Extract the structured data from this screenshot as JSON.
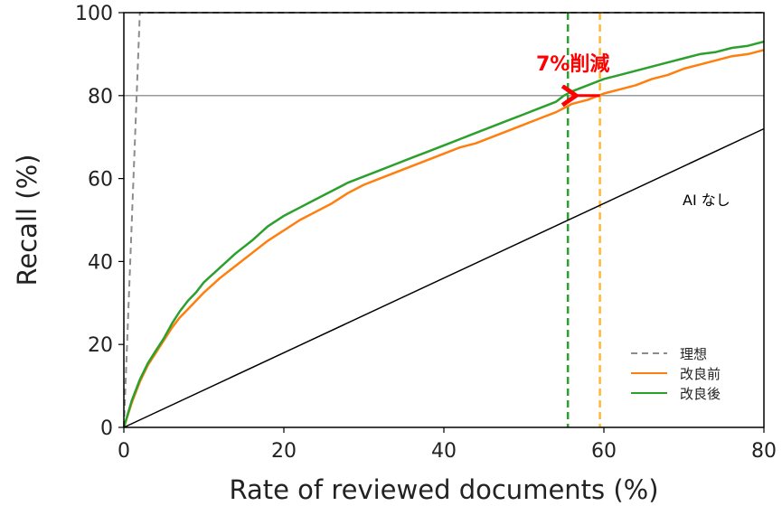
{
  "chart_data": {
    "type": "line",
    "xlabel": "Rate of reviewed documents (%)",
    "ylabel": "Recall (%)",
    "xlim": [
      0,
      80
    ],
    "ylim": [
      0,
      100
    ],
    "xticks": [
      0,
      20,
      40,
      60,
      80
    ],
    "yticks": [
      0,
      20,
      40,
      60,
      80,
      100
    ],
    "legend_position": "bottom-right",
    "series": [
      {
        "name": "理想",
        "color": "#8c8c8c",
        "style": "dashed",
        "x": [
          0,
          2,
          80
        ],
        "y": [
          0,
          100,
          100
        ]
      },
      {
        "name": "改良前",
        "color": "#ff7f0e",
        "style": "solid",
        "x": [
          0,
          1,
          2,
          3,
          4,
          5,
          6,
          7,
          8,
          9,
          10,
          12,
          14,
          16,
          18,
          20,
          22,
          24,
          26,
          28,
          30,
          32,
          34,
          36,
          38,
          40,
          42,
          44,
          46,
          48,
          50,
          52,
          54,
          55,
          56,
          58,
          60,
          62,
          64,
          66,
          68,
          70,
          72,
          74,
          76,
          78,
          80
        ],
        "y": [
          0,
          6,
          11,
          15,
          18,
          21,
          24,
          26.5,
          28.5,
          30.5,
          32.5,
          36,
          39,
          42,
          45,
          47.5,
          50,
          52,
          54,
          56.5,
          58.5,
          60,
          61.5,
          63,
          64.5,
          66,
          67.5,
          68.5,
          70,
          71.5,
          73,
          74.5,
          76,
          77,
          78,
          79,
          80.5,
          81.5,
          82.5,
          84,
          85,
          86.5,
          87.5,
          88.5,
          89.5,
          90,
          91
        ]
      },
      {
        "name": "改良後",
        "color": "#2ca02c",
        "style": "solid",
        "x": [
          0,
          1,
          2,
          3,
          4,
          5,
          6,
          7,
          8,
          9,
          10,
          12,
          14,
          16,
          18,
          20,
          22,
          24,
          26,
          28,
          30,
          32,
          34,
          36,
          38,
          40,
          42,
          44,
          46,
          48,
          50,
          52,
          54,
          55,
          56,
          58,
          60,
          62,
          64,
          66,
          68,
          70,
          72,
          74,
          76,
          78,
          80
        ],
        "y": [
          0,
          6.5,
          11.5,
          15.5,
          18.5,
          21.5,
          25,
          28,
          30.5,
          32.5,
          35,
          38.5,
          42,
          45,
          48.5,
          51,
          53,
          55,
          57,
          59,
          60.5,
          62,
          63.5,
          65,
          66.5,
          68,
          69.5,
          71,
          72.5,
          74,
          75.5,
          77,
          78.5,
          80,
          81,
          82.5,
          84,
          85,
          86,
          87,
          88,
          89,
          90,
          90.5,
          91.5,
          92,
          93
        ]
      },
      {
        "name": "AI なし",
        "color": "#000000",
        "style": "solid",
        "x": [
          0,
          80
        ],
        "y": [
          0,
          72
        ]
      }
    ],
    "reference_lines": {
      "horizontal": {
        "y": 80,
        "color": "#9a9a9a"
      },
      "vertical": [
        {
          "x": 55.5,
          "color": "#2ca02c",
          "style": "dashed"
        },
        {
          "x": 59.5,
          "color": "#ffb833",
          "style": "dashed"
        }
      ]
    },
    "annotations": [
      {
        "text": "7%削減",
        "color": "#ff0000"
      },
      {
        "text": "AI なし",
        "color": "#000000"
      }
    ],
    "arrow": {
      "from": [
        59.5,
        80
      ],
      "to": [
        55.5,
        80
      ],
      "color": "#ff0000"
    }
  }
}
